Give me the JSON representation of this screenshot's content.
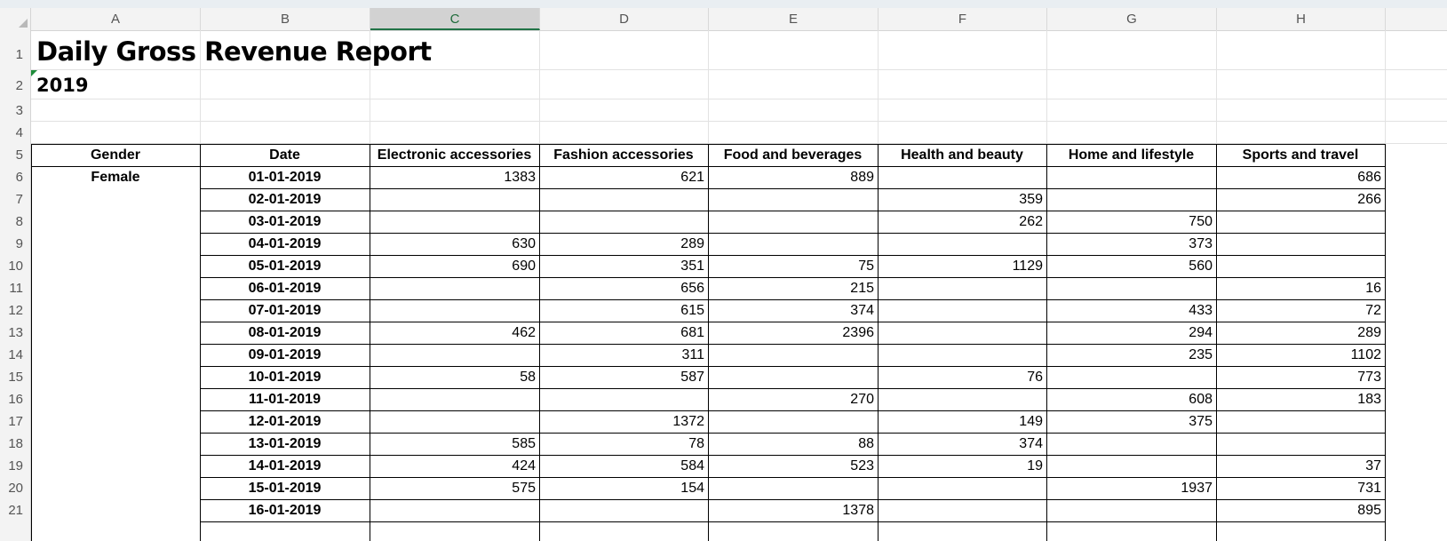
{
  "columns": [
    "A",
    "B",
    "C",
    "D",
    "E",
    "F",
    "G",
    "H"
  ],
  "active_column": "C",
  "rows": [
    "1",
    "2",
    "3",
    "4",
    "5",
    "6",
    "7",
    "8",
    "9",
    "10",
    "11",
    "12",
    "13",
    "14",
    "15",
    "16",
    "17",
    "18",
    "19",
    "20",
    "21"
  ],
  "title": "Daily Gross Revenue Report",
  "subtitle": "2019",
  "table": {
    "headers": [
      "Gender",
      "Date",
      "Electronic accessories",
      "Fashion accessories",
      "Food and beverages",
      "Health and beauty",
      "Home and lifestyle",
      "Sports and travel"
    ],
    "gender": "Female",
    "data": [
      [
        "01-01-2019",
        "1383",
        "621",
        "889",
        "",
        "",
        "686"
      ],
      [
        "02-01-2019",
        "",
        "",
        "",
        "359",
        "",
        "266"
      ],
      [
        "03-01-2019",
        "",
        "",
        "",
        "262",
        "750",
        ""
      ],
      [
        "04-01-2019",
        "630",
        "289",
        "",
        "",
        "373",
        ""
      ],
      [
        "05-01-2019",
        "690",
        "351",
        "75",
        "1129",
        "560",
        ""
      ],
      [
        "06-01-2019",
        "",
        "656",
        "215",
        "",
        "",
        "16"
      ],
      [
        "07-01-2019",
        "",
        "615",
        "374",
        "",
        "433",
        "72"
      ],
      [
        "08-01-2019",
        "462",
        "681",
        "2396",
        "",
        "294",
        "289"
      ],
      [
        "09-01-2019",
        "",
        "311",
        "",
        "",
        "235",
        "1102"
      ],
      [
        "10-01-2019",
        "58",
        "587",
        "",
        "76",
        "",
        "773"
      ],
      [
        "11-01-2019",
        "",
        "",
        "270",
        "",
        "608",
        "183"
      ],
      [
        "12-01-2019",
        "",
        "1372",
        "",
        "149",
        "375",
        ""
      ],
      [
        "13-01-2019",
        "585",
        "78",
        "88",
        "374",
        "",
        ""
      ],
      [
        "14-01-2019",
        "424",
        "584",
        "523",
        "19",
        "",
        "37"
      ],
      [
        "15-01-2019",
        "575",
        "154",
        "",
        "",
        "1937",
        "731"
      ],
      [
        "16-01-2019",
        "",
        "",
        "1378",
        "",
        "",
        "895"
      ]
    ]
  }
}
